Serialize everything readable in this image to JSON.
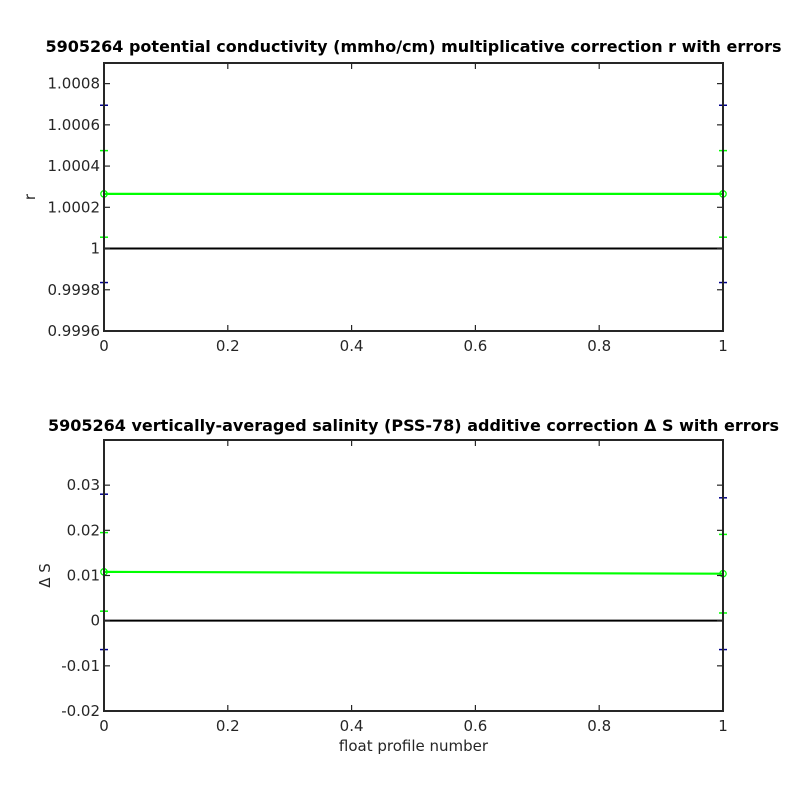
{
  "chart_data": [
    {
      "type": "line",
      "title": "5905264 potential conductivity (mmho/cm) multiplicative correction r with errors",
      "xlabel": "",
      "ylabel": "r",
      "xlim": [
        0,
        1
      ],
      "ylim": [
        0.9996,
        1.0009
      ],
      "xticks": [
        "0",
        "0.2",
        "0.4",
        "0.6",
        "0.8",
        "1"
      ],
      "xtick_values": [
        0,
        0.2,
        0.4,
        0.6,
        0.8,
        1
      ],
      "yticks": [
        "0.9996",
        "0.9998",
        "1",
        "1.0002",
        "1.0004",
        "1.0006",
        "1.0008"
      ],
      "ytick_values": [
        0.9996,
        0.9998,
        1.0,
        1.0002,
        1.0004,
        1.0006,
        1.0008
      ],
      "reference_line": 1.0,
      "series": [
        {
          "color": "#00ff00",
          "x": [
            0,
            1
          ],
          "y": [
            1.000265,
            1.000265
          ],
          "err": [
            0.00021,
            0.00021
          ]
        }
      ],
      "errorbars": [
        {
          "color": "#00008b",
          "x": [
            0,
            1
          ],
          "y": [
            1.000265,
            1.000265
          ],
          "err": [
            0.00043,
            0.00043
          ]
        }
      ],
      "grid": false
    },
    {
      "type": "line",
      "title": "5905264 vertically-averaged salinity (PSS-78) additive correction Δ S with errors",
      "xlabel": "float profile number",
      "ylabel": "Δ S",
      "xlim": [
        0,
        1
      ],
      "ylim": [
        -0.02,
        0.04
      ],
      "xticks": [
        "0",
        "0.2",
        "0.4",
        "0.6",
        "0.8",
        "1"
      ],
      "xtick_values": [
        0,
        0.2,
        0.4,
        0.6,
        0.8,
        1
      ],
      "yticks": [
        "-0.02",
        "-0.01",
        "0",
        "0.01",
        "0.02",
        "0.03"
      ],
      "ytick_values": [
        -0.02,
        -0.01,
        0,
        0.01,
        0.02,
        0.03
      ],
      "reference_line": 0,
      "series": [
        {
          "color": "#00ff00",
          "x": [
            0,
            1
          ],
          "y": [
            0.0108,
            0.0104
          ],
          "err": [
            0.0087,
            0.0087
          ]
        }
      ],
      "errorbars": [
        {
          "color": "#00008b",
          "x": [
            0,
            1
          ],
          "y": [
            0.0108,
            0.0104
          ],
          "err": [
            0.0172,
            0.0168
          ]
        }
      ],
      "grid": false
    }
  ],
  "colors": {
    "correction": "#00ff00",
    "error_outer": "#00008b",
    "reference": "#000000",
    "axes": "#262626"
  }
}
